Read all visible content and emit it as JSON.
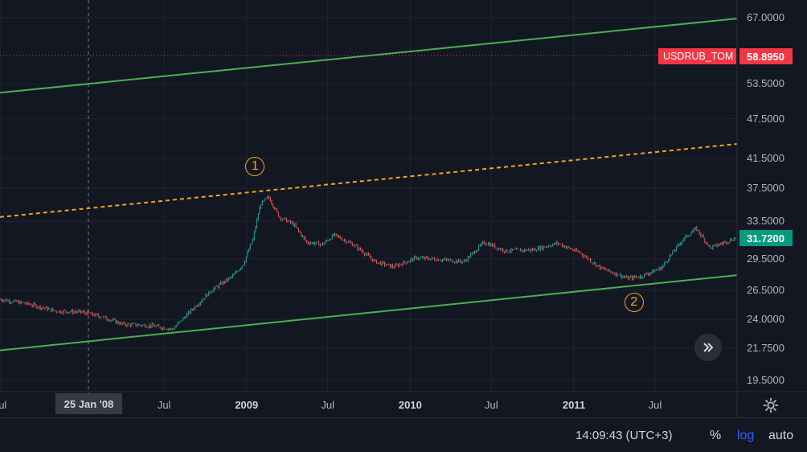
{
  "chart_data": {
    "type": "candlestick",
    "symbol": "USDRUB_TOM",
    "y_scale": "log",
    "y_ticks": [
      "67.0000",
      "53.5000",
      "47.5000",
      "41.5000",
      "37.5000",
      "33.5000",
      "29.5000",
      "26.5000",
      "24.0000",
      "21.7500",
      "19.5000"
    ],
    "x_ticks": [
      {
        "label": "Jul",
        "date": "2007-07-01",
        "bold": false
      },
      {
        "label": "Jul",
        "date": "2008-07-01",
        "bold": false
      },
      {
        "label": "2009",
        "date": "2009-01-01",
        "bold": true
      },
      {
        "label": "Jul",
        "date": "2009-07-01",
        "bold": false
      },
      {
        "label": "2010",
        "date": "2010-01-01",
        "bold": true
      },
      {
        "label": "Jul",
        "date": "2010-07-01",
        "bold": false
      },
      {
        "label": "2011",
        "date": "2011-01-01",
        "bold": true
      },
      {
        "label": "Jul",
        "date": "2011-07-01",
        "bold": false
      }
    ],
    "crosshair": {
      "date": "2008-01-25",
      "label": "25 Jan '08"
    },
    "last_price": "58.8950",
    "current_price": "31.7200",
    "series_close": [
      [
        "2007-07-01",
        25.7
      ],
      [
        "2007-09-01",
        25.3
      ],
      [
        "2007-11-01",
        24.7
      ],
      [
        "2008-01-01",
        24.6
      ],
      [
        "2008-02-15",
        24.2
      ],
      [
        "2008-04-01",
        23.6
      ],
      [
        "2008-06-01",
        23.5
      ],
      [
        "2008-07-20",
        23.2
      ],
      [
        "2008-09-01",
        24.8
      ],
      [
        "2008-10-15",
        26.5
      ],
      [
        "2008-12-01",
        27.8
      ],
      [
        "2008-12-25",
        29.0
      ],
      [
        "2009-01-15",
        31.5
      ],
      [
        "2009-02-01",
        35.5
      ],
      [
        "2009-02-19",
        36.4
      ],
      [
        "2009-03-15",
        34.0
      ],
      [
        "2009-04-15",
        33.2
      ],
      [
        "2009-05-15",
        31.2
      ],
      [
        "2009-06-20",
        31.0
      ],
      [
        "2009-07-15",
        32.0
      ],
      [
        "2009-09-01",
        30.8
      ],
      [
        "2009-10-15",
        29.2
      ],
      [
        "2009-11-25",
        28.7
      ],
      [
        "2010-01-15",
        29.6
      ],
      [
        "2010-03-15",
        29.4
      ],
      [
        "2010-05-01",
        29.2
      ],
      [
        "2010-06-15",
        31.2
      ],
      [
        "2010-08-01",
        30.3
      ],
      [
        "2010-10-01",
        30.4
      ],
      [
        "2010-11-25",
        31.1
      ],
      [
        "2011-01-15",
        30.1
      ],
      [
        "2011-03-01",
        28.6
      ],
      [
        "2011-05-01",
        27.6
      ],
      [
        "2011-06-01",
        27.8
      ],
      [
        "2011-07-15",
        28.6
      ],
      [
        "2011-09-01",
        31.5
      ],
      [
        "2011-10-01",
        32.7
      ],
      [
        "2011-11-01",
        30.6
      ],
      [
        "2011-12-31",
        31.72
      ]
    ],
    "trendlines": [
      {
        "name": "upper-channel",
        "color": "#4caf50",
        "style": "solid",
        "from": [
          "2007-07-01",
          51.9
        ],
        "to": [
          "2011-12-31",
          66.8
        ]
      },
      {
        "name": "mid-channel",
        "color": "#f7a21b",
        "style": "dashed",
        "from": [
          "2007-07-01",
          34.0
        ],
        "to": [
          "2011-12-31",
          43.6
        ]
      },
      {
        "name": "lower-channel",
        "color": "#4caf50",
        "style": "solid",
        "from": [
          "2007-07-01",
          21.6
        ],
        "to": [
          "2011-12-31",
          27.9
        ]
      }
    ],
    "annotations": [
      {
        "text": "1",
        "date": "2009-01-20",
        "price": 40.4
      },
      {
        "text": "2",
        "date": "2011-05-15",
        "price": 25.4
      }
    ]
  },
  "colors": {
    "up": "#26a69a",
    "down": "#ef5350",
    "grid": "#1f2430",
    "bg": "#131722"
  },
  "footer": {
    "time": "14:09:43 (UTC+3)",
    "pct": "%",
    "log": "log",
    "auto": "auto"
  },
  "icons": {
    "scroll": "double-chevron-right-icon",
    "settings": "gear-icon"
  }
}
